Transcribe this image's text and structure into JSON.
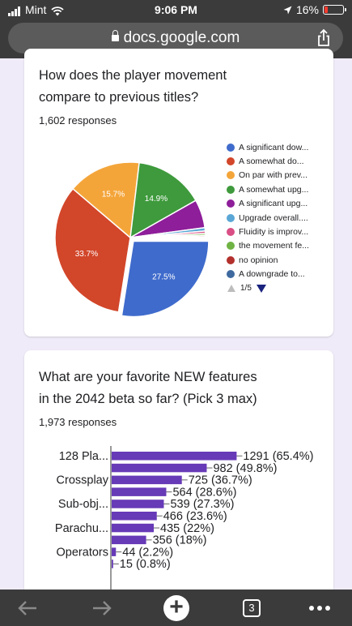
{
  "status_bar": {
    "carrier": "Mint",
    "time": "9:06 PM",
    "battery": "16%",
    "battery_level": 0.16
  },
  "browser": {
    "url": "docs.google.com",
    "tab_count": "3"
  },
  "question1": {
    "title_line1": "How does the player movement",
    "title_line2": "compare to previous titles?",
    "responses": "1,602 responses",
    "pager": "1/5",
    "chart_data": {
      "type": "pie",
      "slices": [
        {
          "label": "A significant dow...",
          "value": 27.5,
          "color": "#3f6bcc",
          "shown_label": "27.5%"
        },
        {
          "label": "A somewhat do...",
          "value": 33.7,
          "color": "#d2462a",
          "shown_label": "33.7%"
        },
        {
          "label": "On par with prev...",
          "value": 15.7,
          "color": "#f4a53a",
          "shown_label": "15.7%"
        },
        {
          "label": "A somewhat upg...",
          "value": 14.9,
          "color": "#3e9a3c",
          "shown_label": "14.9%"
        },
        {
          "label": "A significant upg...",
          "value": 6.1,
          "color": "#8e1e9a",
          "shown_label": ""
        },
        {
          "label": "Upgrade overall....",
          "value": 0.7,
          "color": "#5aa7d6",
          "shown_label": ""
        },
        {
          "label": "Fluidity is improv...",
          "value": 0.5,
          "color": "#d94f85",
          "shown_label": ""
        },
        {
          "label": "the movement fe...",
          "value": 0.4,
          "color": "#6fb344",
          "shown_label": ""
        },
        {
          "label": "no opinion",
          "value": 0.3,
          "color": "#b3302c",
          "shown_label": ""
        },
        {
          "label": "A downgrade to...",
          "value": 0.2,
          "color": "#3f6aa0",
          "shown_label": ""
        }
      ]
    }
  },
  "question2": {
    "title_line1": "What are your favorite NEW features",
    "title_line2": "in the 2042 beta so far? (Pick 3 max)",
    "responses": "1,973 responses",
    "chart_data": {
      "type": "bar",
      "orientation": "horizontal",
      "bar_color": "#673ab7",
      "xlim": [
        0,
        1973
      ],
      "bars": [
        {
          "category": "128 Pla...",
          "value": 1291,
          "label": "1291 (65.4%)"
        },
        {
          "category": "",
          "value": 982,
          "label": "982 (49.8%)"
        },
        {
          "category": "Crossplay",
          "value": 725,
          "label": "725 (36.7%)"
        },
        {
          "category": "",
          "value": 564,
          "label": "564 (28.6%)"
        },
        {
          "category": "Sub-obj...",
          "value": 539,
          "label": "539 (27.3%)"
        },
        {
          "category": "",
          "value": 466,
          "label": "466 (23.6%)"
        },
        {
          "category": "Parachu...",
          "value": 435,
          "label": "435 (22%)"
        },
        {
          "category": "",
          "value": 356,
          "label": "356 (18%)"
        },
        {
          "category": "Operators",
          "value": 44,
          "label": "44 (2.2%)"
        },
        {
          "category": "",
          "value": 15,
          "label": "15 (0.8%)"
        }
      ]
    }
  }
}
